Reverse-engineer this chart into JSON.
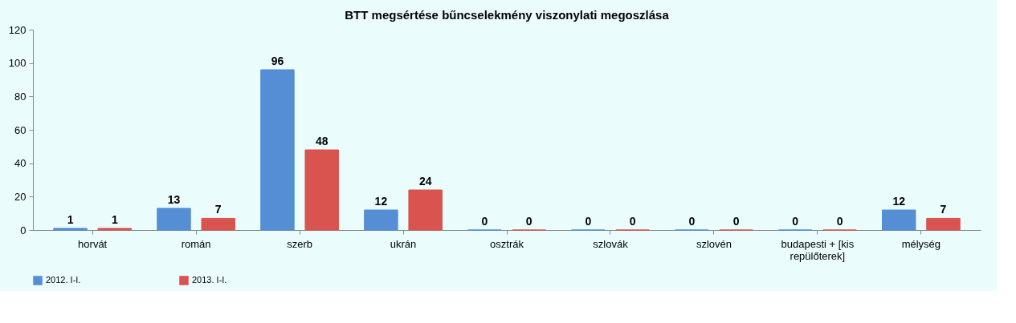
{
  "chart_data": {
    "type": "bar",
    "title": "BTT megsértése bűncselekmény viszonylati megoszlása",
    "categories": [
      "horvát",
      "román",
      "szerb",
      "ukrán",
      "osztrák",
      "szlovák",
      "szlovén",
      "budapesti + [kis repülőterek]",
      "mélység"
    ],
    "series": [
      {
        "name": "2012. I-I.",
        "color": "#558ed5",
        "values": [
          1,
          13,
          96,
          12,
          0,
          0,
          0,
          0,
          12
        ]
      },
      {
        "name": "2013. I-I.",
        "color": "#d9534f",
        "values": [
          1,
          7,
          48,
          24,
          0,
          0,
          0,
          0,
          7
        ]
      }
    ],
    "ylim": [
      0,
      120
    ],
    "yticks": [
      0,
      20,
      40,
      60,
      80,
      100,
      120
    ],
    "grid": false,
    "legend": "bottom",
    "data_labels": true
  }
}
